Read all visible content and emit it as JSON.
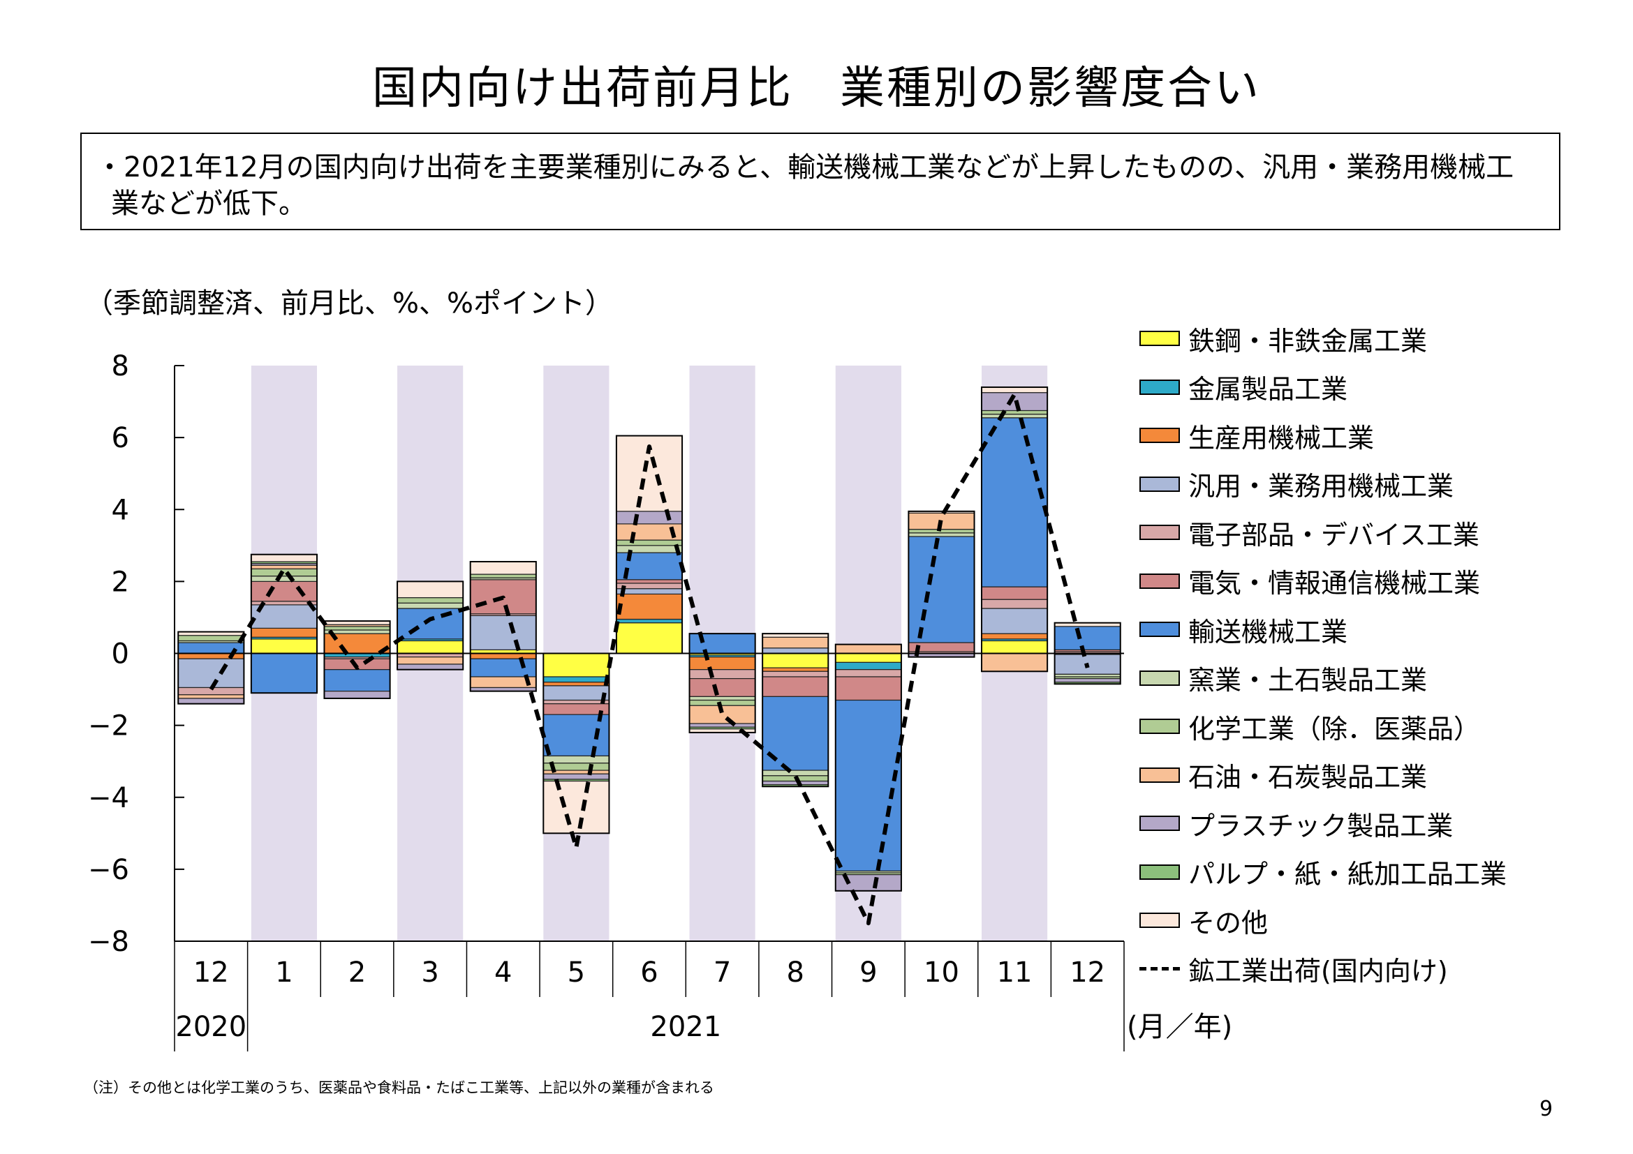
{
  "title": "国内向け出荷前月比　業種別の影響度合い",
  "summary": "・2021年12月の国内向け出荷を主要業種別にみると、輸送機械工業などが上昇したものの、汎用・業務用機械工業などが低下。",
  "unit_note": "（季節調整済、前月比、%、%ポイント）",
  "footnote": "（注）その他とは化学工業のうち、医薬品や食料品・たばこ工業等、上記以外の業種が含まれる",
  "page_number": "9",
  "chart_data": {
    "type": "bar",
    "stacked": true,
    "categories": [
      "12",
      "1",
      "2",
      "3",
      "4",
      "5",
      "6",
      "7",
      "8",
      "9",
      "10",
      "11",
      "12"
    ],
    "year_labels": [
      "2020",
      "2021"
    ],
    "axis_unit_label": "(月／年)",
    "ylim": [
      -8,
      8
    ],
    "y_ticks": [
      8,
      6,
      4,
      2,
      0,
      -2,
      -4,
      -6,
      -8
    ],
    "shaded_categories": [
      1,
      3,
      5,
      7,
      9,
      11
    ],
    "shade_color": "#e2dcec",
    "legend_position": "right",
    "series": [
      {
        "name": "鉄鋼・非鉄金属工業",
        "color": "#ffff44",
        "values": [
          0,
          0.4,
          0,
          0.35,
          0.1,
          -0.65,
          0.85,
          -0.05,
          -0.4,
          -0.25,
          0,
          0.35,
          0
        ]
      },
      {
        "name": "金属製品工業",
        "color": "#2eaac8",
        "values": [
          0,
          0.05,
          -0.1,
          0.05,
          0,
          -0.15,
          0.1,
          -0.05,
          0,
          -0.2,
          0,
          0.05,
          -0.03
        ]
      },
      {
        "name": "生産用機械工業",
        "color": "#f4893a",
        "values": [
          -0.15,
          0.25,
          0.55,
          0,
          -0.15,
          -0.1,
          0.7,
          -0.35,
          -0.1,
          0,
          0,
          0.15,
          0
        ]
      },
      {
        "name": "汎用・業務用機械工業",
        "color": "#aab8d8",
        "values": [
          -0.8,
          0.65,
          0,
          0,
          0.95,
          -0.4,
          0.15,
          0,
          0.15,
          0,
          0,
          0.7,
          -0.55
        ]
      },
      {
        "name": "電子部品・デバイス工業",
        "color": "#d8a8a8",
        "values": [
          -0.2,
          0.1,
          -0.05,
          -0.1,
          0.05,
          -0.1,
          0.15,
          -0.25,
          -0.15,
          -0.2,
          0.05,
          0.25,
          0.05
        ]
      },
      {
        "name": "電気・情報通信機械工業",
        "color": "#d08888",
        "values": [
          0,
          0.55,
          -0.3,
          0,
          0.95,
          -0.3,
          0.1,
          -0.5,
          -0.55,
          -0.65,
          0.25,
          0.35,
          0.05
        ]
      },
      {
        "name": "輸送機械工業",
        "color": "#4f8edc",
        "values": [
          0.3,
          -1.1,
          -0.6,
          0.85,
          -0.5,
          -1.15,
          0.75,
          0.55,
          -2.05,
          -4.75,
          2.95,
          4.7,
          0.65
        ]
      },
      {
        "name": "窯業・土石製品工業",
        "color": "#c8d8b0",
        "values": [
          0.05,
          0.15,
          0.1,
          0.15,
          0.05,
          -0.2,
          0.2,
          -0.1,
          -0.15,
          -0.05,
          0.1,
          0.1,
          -0.07
        ]
      },
      {
        "name": "化学工業（除．医薬品）",
        "color": "#b0cc94",
        "values": [
          0.15,
          0.2,
          0.1,
          0.15,
          0.1,
          -0.2,
          0.15,
          -0.15,
          -0.15,
          -0.05,
          0.1,
          0.1,
          -0.05
        ]
      },
      {
        "name": "石油・石炭製品工業",
        "color": "#f8c096",
        "values": [
          -0.1,
          0.1,
          0.05,
          -0.2,
          -0.3,
          -0.1,
          0.45,
          -0.5,
          0.3,
          0.25,
          0.45,
          -0.5,
          0
        ]
      },
      {
        "name": "プラスチック製品工業",
        "color": "#b4a8c8",
        "values": [
          -0.15,
          0.05,
          -0.2,
          -0.15,
          -0.1,
          -0.15,
          0.35,
          -0.1,
          -0.1,
          -0.45,
          -0.1,
          0.5,
          -0.1
        ]
      },
      {
        "name": "パルプ・紙・紙加工品工業",
        "color": "#8cc07c",
        "values": [
          0,
          0.05,
          0,
          0,
          0,
          -0.05,
          0,
          -0.05,
          -0.05,
          0,
          0,
          0,
          -0.05
        ]
      },
      {
        "name": "その他",
        "color": "#fce8dc",
        "values": [
          0.1,
          0.2,
          0.1,
          0.45,
          0.35,
          -1.45,
          2.1,
          -0.1,
          0.1,
          0,
          0.05,
          0.15,
          0.1
        ]
      }
    ],
    "line_series": {
      "name": "鉱工業出荷(国内向け)",
      "style": "dashed",
      "color": "#000000",
      "values": [
        -1.0,
        2.35,
        -0.4,
        0.95,
        1.55,
        -5.4,
        5.75,
        -1.7,
        -3.4,
        -7.5,
        3.8,
        7.2,
        -0.4
      ]
    }
  }
}
